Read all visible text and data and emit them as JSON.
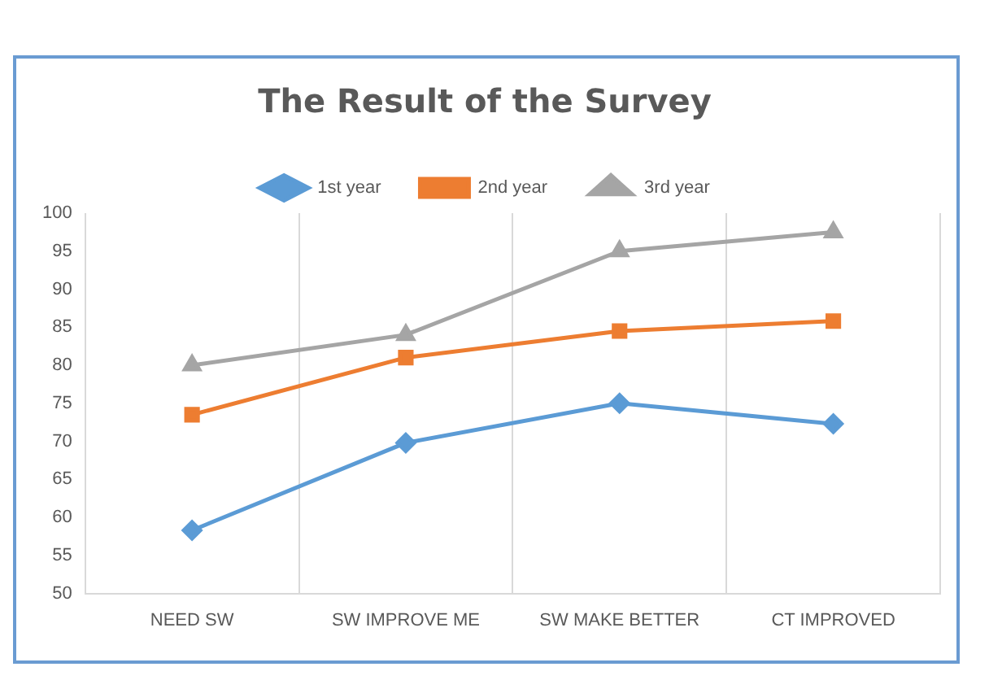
{
  "chart_data": {
    "type": "line",
    "title": "The Result of the Survey",
    "categories": [
      "NEED SW",
      "SW IMPROVE ME",
      "SW MAKE BETTER",
      "CT IMPROVED"
    ],
    "series": [
      {
        "name": "1st year",
        "color": "#5b9bd5",
        "marker": "diamond",
        "values": [
          58.3,
          69.8,
          75,
          72.3
        ]
      },
      {
        "name": "2nd year",
        "color": "#ed7d31",
        "marker": "square",
        "values": [
          73.5,
          81,
          84.5,
          85.8
        ]
      },
      {
        "name": "3rd year",
        "color": "#a5a5a5",
        "marker": "triangle",
        "values": [
          80,
          84,
          95,
          97.5
        ]
      }
    ],
    "ylim": [
      50,
      100
    ],
    "yticks": [
      50,
      55,
      60,
      65,
      70,
      75,
      80,
      85,
      90,
      95,
      100
    ],
    "grid": "x",
    "legend": "top"
  }
}
